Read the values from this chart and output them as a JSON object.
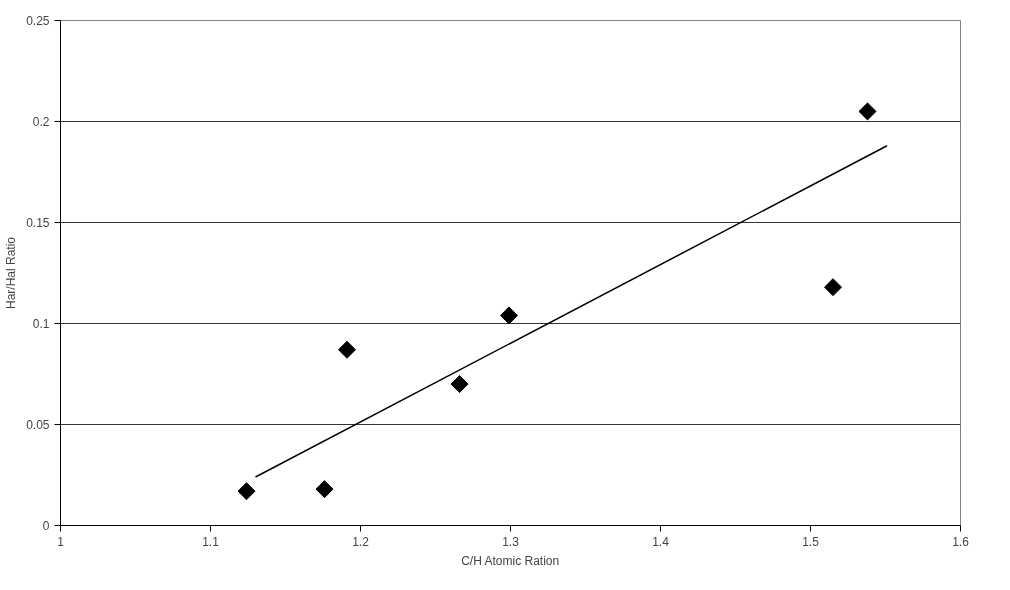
{
  "chart_data": {
    "type": "scatter",
    "xlabel": "C/H Atomic Ration",
    "ylabel": "Har/Hal Ratio",
    "xlim": [
      1,
      1.6
    ],
    "xticks": [
      1,
      1.1,
      1.2,
      1.3,
      1.4,
      1.5,
      1.6
    ],
    "ylim": [
      0,
      0.25
    ],
    "yticks": [
      0,
      0.05,
      0.1,
      0.15,
      0.2,
      0.25
    ],
    "grid": "y",
    "marker": "diamond",
    "series": [
      {
        "color": "#000000",
        "x": [
          1.124,
          1.176,
          1.191,
          1.266,
          1.299,
          1.515,
          1.538
        ],
        "values": [
          0.017,
          0.018,
          0.087,
          0.07,
          0.104,
          0.118,
          0.205
        ]
      },
      {
        "type": "line",
        "color": "#000000",
        "marker": "none",
        "line_style": "solid",
        "x": [
          1.13,
          1.551
        ],
        "values": [
          0.024,
          0.188
        ]
      }
    ]
  }
}
